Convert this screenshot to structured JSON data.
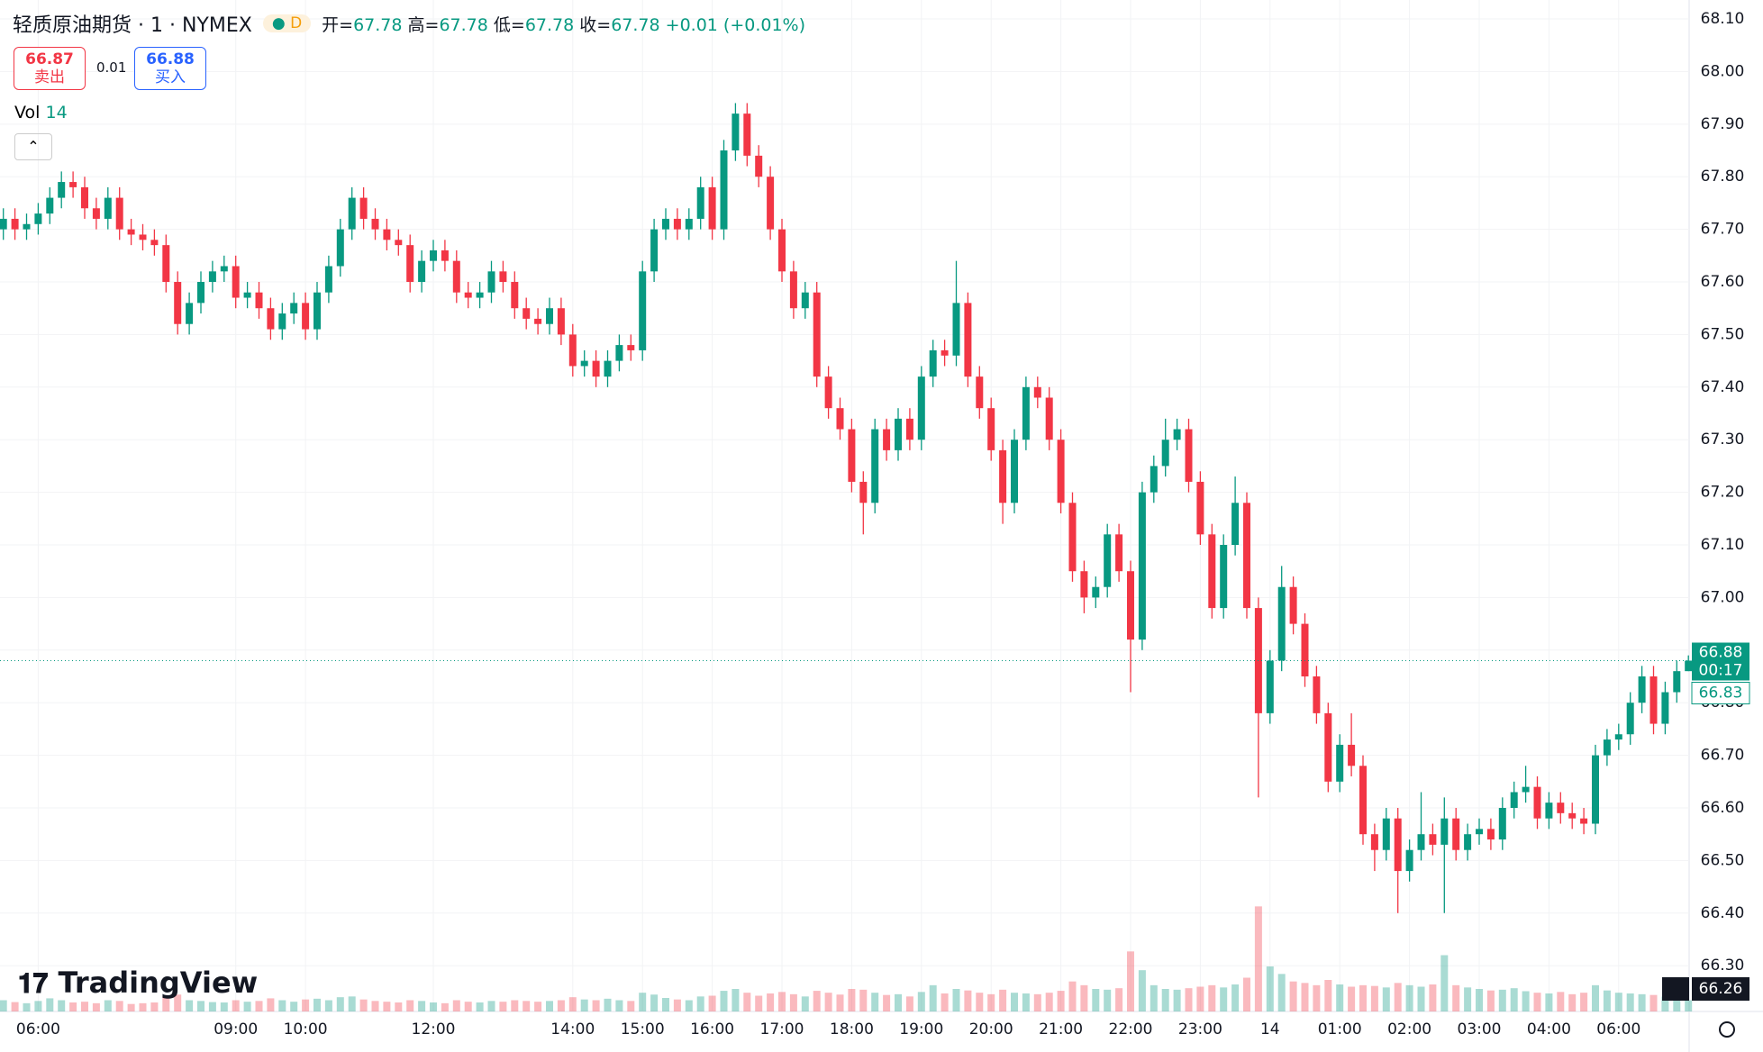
{
  "header": {
    "title": "轻质原油期货 · 1 · NYMEX",
    "interval_badge": "D",
    "ohlc": [
      {
        "k": "开=",
        "v": "67.78"
      },
      {
        "k": "高=",
        "v": "67.78"
      },
      {
        "k": "低=",
        "v": "67.78"
      },
      {
        "k": "收=",
        "v": "67.78"
      }
    ],
    "change": "+0.01 (+0.01%)",
    "bid": {
      "price": "66.87",
      "label": "卖出"
    },
    "spread": "0.01",
    "ask": {
      "price": "66.88",
      "label": "买入"
    },
    "vol": {
      "label": "Vol",
      "value": "14"
    },
    "logo": "TradingView",
    "price_tags": {
      "last": "66.88",
      "countdown": "00:17",
      "second": "66.83",
      "cursor": "66.26"
    }
  },
  "chart_data": {
    "type": "candlestick",
    "up_color": "#089981",
    "down_color": "#f23645",
    "grid": true,
    "ylim": [
      66.213,
      68.136
    ],
    "yticks": [
      {
        "value": 66.3,
        "label": "66.30"
      },
      {
        "value": 66.4,
        "label": "66.40"
      },
      {
        "value": 66.5,
        "label": "66.50"
      },
      {
        "value": 66.6,
        "label": "66.60"
      },
      {
        "value": 66.7,
        "label": "66.70"
      },
      {
        "value": 66.8,
        "label": "66.80"
      },
      {
        "value": 66.9,
        "label": "66.90"
      },
      {
        "value": 67.0,
        "label": "67.00"
      },
      {
        "value": 67.1,
        "label": "67.10"
      },
      {
        "value": 67.2,
        "label": "67.20"
      },
      {
        "value": 67.3,
        "label": "67.30"
      },
      {
        "value": 67.4,
        "label": "67.40"
      },
      {
        "value": 67.5,
        "label": "67.50"
      },
      {
        "value": 67.6,
        "label": "67.60"
      },
      {
        "value": 67.7,
        "label": "67.70"
      },
      {
        "value": 67.8,
        "label": "67.80"
      },
      {
        "value": 67.9,
        "label": "67.90"
      },
      {
        "value": 68.0,
        "label": "68.00"
      },
      {
        "value": 68.1,
        "label": "68.10"
      }
    ],
    "x": [
      null,
      null,
      null,
      "06:00",
      null,
      null,
      null,
      null,
      null,
      null,
      null,
      null,
      null,
      null,
      null,
      null,
      null,
      null,
      null,
      null,
      "09:00",
      null,
      null,
      null,
      null,
      null,
      "10:00",
      null,
      null,
      null,
      null,
      null,
      null,
      null,
      null,
      null,
      null,
      "12:00",
      null,
      null,
      null,
      null,
      null,
      null,
      null,
      null,
      null,
      null,
      null,
      "14:00",
      null,
      null,
      null,
      null,
      null,
      "15:00",
      null,
      null,
      null,
      null,
      null,
      "16:00",
      null,
      null,
      null,
      null,
      null,
      "17:00",
      null,
      null,
      null,
      null,
      null,
      "18:00",
      null,
      null,
      null,
      null,
      null,
      "19:00",
      null,
      null,
      null,
      null,
      null,
      "20:00",
      null,
      null,
      null,
      null,
      null,
      "21:00",
      null,
      null,
      null,
      null,
      null,
      "22:00",
      null,
      null,
      null,
      null,
      null,
      "23:00",
      null,
      null,
      null,
      null,
      null,
      "14",
      null,
      null,
      null,
      null,
      null,
      "01:00",
      null,
      null,
      null,
      null,
      null,
      "02:00",
      null,
      null,
      null,
      null,
      null,
      "03:00",
      null,
      null,
      null,
      null,
      null,
      "04:00",
      null,
      null,
      null,
      null,
      null,
      "06:00",
      null,
      null,
      null,
      null,
      null,
      null
    ],
    "open": [
      67.7,
      67.72,
      67.7,
      67.71,
      67.73,
      67.76,
      67.79,
      67.78,
      67.74,
      67.72,
      67.76,
      67.7,
      67.69,
      67.68,
      67.67,
      67.6,
      67.52,
      67.56,
      67.6,
      67.62,
      67.63,
      67.57,
      67.58,
      67.55,
      67.51,
      67.54,
      67.56,
      67.51,
      67.58,
      67.63,
      67.7,
      67.76,
      67.72,
      67.7,
      67.68,
      67.67,
      67.6,
      67.64,
      67.66,
      67.64,
      67.58,
      67.57,
      67.58,
      67.62,
      67.6,
      67.55,
      67.53,
      67.52,
      67.55,
      67.5,
      67.44,
      67.45,
      67.42,
      67.45,
      67.48,
      67.47,
      67.62,
      67.7,
      67.72,
      67.7,
      67.72,
      67.78,
      67.7,
      67.85,
      67.92,
      67.84,
      67.8,
      67.7,
      67.62,
      67.55,
      67.58,
      67.42,
      67.36,
      67.32,
      67.22,
      67.18,
      67.32,
      67.28,
      67.34,
      67.3,
      67.42,
      67.47,
      67.46,
      67.56,
      67.42,
      67.36,
      67.28,
      67.18,
      67.3,
      67.4,
      67.38,
      67.3,
      67.18,
      67.05,
      67.0,
      67.02,
      67.12,
      67.05,
      66.92,
      67.2,
      67.25,
      67.3,
      67.32,
      67.22,
      67.12,
      66.98,
      67.1,
      67.18,
      66.98,
      66.78,
      66.88,
      67.02,
      66.95,
      66.85,
      66.78,
      66.65,
      66.72,
      66.68,
      66.55,
      66.52,
      66.58,
      66.48,
      66.52,
      66.55,
      66.53,
      66.58,
      66.52,
      66.55,
      66.56,
      66.54,
      66.6,
      66.63,
      66.64,
      66.58,
      66.61,
      66.59,
      66.58,
      66.57,
      66.7,
      66.73,
      66.74,
      66.8,
      66.85,
      66.76,
      66.82,
      66.86
    ],
    "high": [
      67.74,
      67.74,
      67.73,
      67.75,
      67.78,
      67.81,
      67.81,
      67.8,
      67.76,
      67.78,
      67.78,
      67.72,
      67.71,
      67.7,
      67.69,
      67.62,
      67.58,
      67.62,
      67.64,
      67.65,
      67.65,
      67.6,
      67.6,
      67.57,
      67.56,
      67.58,
      67.58,
      67.6,
      67.65,
      67.72,
      67.78,
      67.78,
      67.74,
      67.72,
      67.7,
      67.69,
      67.66,
      67.68,
      67.68,
      67.66,
      67.6,
      67.6,
      67.64,
      67.64,
      67.62,
      67.57,
      67.55,
      67.57,
      67.57,
      67.52,
      67.47,
      67.47,
      67.47,
      67.5,
      67.5,
      67.64,
      67.72,
      67.74,
      67.74,
      67.74,
      67.8,
      67.8,
      67.87,
      67.94,
      67.94,
      67.86,
      67.82,
      67.72,
      67.64,
      67.6,
      67.6,
      67.44,
      67.38,
      67.34,
      67.24,
      67.34,
      67.34,
      67.36,
      67.36,
      67.44,
      67.49,
      67.49,
      67.64,
      67.58,
      67.44,
      67.38,
      67.3,
      67.32,
      67.42,
      67.42,
      67.4,
      67.32,
      67.2,
      67.07,
      67.04,
      67.14,
      67.14,
      67.07,
      67.22,
      67.27,
      67.34,
      67.34,
      67.34,
      67.24,
      67.14,
      67.12,
      67.23,
      67.2,
      67.0,
      66.9,
      67.06,
      67.04,
      66.97,
      66.87,
      66.8,
      66.74,
      66.78,
      66.7,
      66.57,
      66.6,
      66.6,
      66.54,
      66.63,
      66.57,
      66.62,
      66.6,
      66.57,
      66.58,
      66.58,
      66.62,
      66.65,
      66.68,
      66.66,
      66.63,
      66.63,
      66.61,
      66.6,
      66.72,
      66.75,
      66.76,
      66.82,
      66.87,
      66.87,
      66.84,
      66.88,
      66.89
    ],
    "low": [
      67.68,
      67.68,
      67.68,
      67.69,
      67.71,
      67.74,
      67.76,
      67.72,
      67.7,
      67.7,
      67.68,
      67.67,
      67.66,
      67.65,
      67.58,
      67.5,
      67.5,
      67.54,
      67.58,
      67.6,
      67.55,
      67.55,
      67.53,
      67.49,
      67.49,
      67.52,
      67.49,
      67.49,
      67.56,
      67.61,
      67.68,
      67.7,
      67.68,
      67.66,
      67.65,
      67.58,
      67.58,
      67.62,
      67.62,
      67.56,
      67.55,
      67.55,
      67.56,
      67.58,
      67.53,
      67.51,
      67.5,
      67.5,
      67.48,
      67.42,
      67.42,
      67.4,
      67.4,
      67.43,
      67.45,
      67.45,
      67.6,
      67.68,
      67.68,
      67.68,
      67.7,
      67.68,
      67.68,
      67.83,
      67.82,
      67.78,
      67.68,
      67.6,
      67.53,
      67.53,
      67.4,
      67.34,
      67.3,
      67.2,
      67.12,
      67.16,
      67.26,
      67.26,
      67.28,
      67.28,
      67.4,
      67.44,
      67.44,
      67.4,
      67.34,
      67.26,
      67.14,
      67.16,
      67.28,
      67.36,
      67.28,
      67.16,
      67.03,
      66.97,
      66.98,
      67.0,
      67.03,
      66.82,
      66.9,
      67.18,
      67.23,
      67.28,
      67.2,
      67.1,
      66.96,
      66.96,
      67.08,
      66.96,
      66.62,
      66.76,
      66.86,
      66.93,
      66.83,
      66.76,
      66.63,
      66.63,
      66.66,
      66.53,
      66.48,
      66.5,
      66.4,
      66.46,
      66.5,
      66.51,
      66.4,
      66.5,
      66.5,
      66.53,
      66.52,
      66.52,
      66.58,
      66.61,
      66.56,
      66.56,
      66.57,
      66.56,
      66.55,
      66.55,
      66.68,
      66.71,
      66.72,
      66.78,
      66.74,
      66.74,
      66.8,
      66.86
    ],
    "close": [
      67.72,
      67.7,
      67.71,
      67.73,
      67.76,
      67.79,
      67.78,
      67.74,
      67.72,
      67.76,
      67.7,
      67.69,
      67.68,
      67.67,
      67.6,
      67.52,
      67.56,
      67.6,
      67.62,
      67.63,
      67.57,
      67.58,
      67.55,
      67.51,
      67.54,
      67.56,
      67.51,
      67.58,
      67.63,
      67.7,
      67.76,
      67.72,
      67.7,
      67.68,
      67.67,
      67.6,
      67.64,
      67.66,
      67.64,
      67.58,
      67.57,
      67.58,
      67.62,
      67.6,
      67.55,
      67.53,
      67.52,
      67.55,
      67.5,
      67.44,
      67.45,
      67.42,
      67.45,
      67.48,
      67.47,
      67.62,
      67.7,
      67.72,
      67.7,
      67.72,
      67.78,
      67.7,
      67.85,
      67.92,
      67.84,
      67.8,
      67.7,
      67.62,
      67.55,
      67.58,
      67.42,
      67.36,
      67.32,
      67.22,
      67.18,
      67.32,
      67.28,
      67.34,
      67.3,
      67.42,
      67.47,
      67.46,
      67.56,
      67.42,
      67.36,
      67.28,
      67.18,
      67.3,
      67.4,
      67.38,
      67.3,
      67.18,
      67.05,
      67.0,
      67.02,
      67.12,
      67.05,
      66.92,
      67.2,
      67.25,
      67.3,
      67.32,
      67.22,
      67.12,
      66.98,
      67.1,
      67.18,
      66.98,
      66.78,
      66.88,
      67.02,
      66.95,
      66.85,
      66.78,
      66.65,
      66.72,
      66.68,
      66.55,
      66.52,
      66.58,
      66.48,
      66.52,
      66.55,
      66.53,
      66.58,
      66.52,
      66.55,
      66.56,
      66.54,
      66.6,
      66.63,
      66.64,
      66.58,
      66.61,
      66.59,
      66.58,
      66.57,
      66.7,
      66.73,
      66.74,
      66.8,
      66.85,
      66.76,
      66.82,
      66.86,
      66.88
    ],
    "volume": [
      30,
      25,
      22,
      28,
      35,
      30,
      24,
      26,
      22,
      30,
      28,
      20,
      22,
      24,
      40,
      45,
      30,
      28,
      25,
      24,
      30,
      26,
      28,
      35,
      30,
      26,
      32,
      34,
      30,
      38,
      40,
      32,
      28,
      26,
      24,
      30,
      28,
      24,
      22,
      30,
      26,
      24,
      28,
      26,
      30,
      28,
      26,
      28,
      30,
      38,
      32,
      30,
      34,
      30,
      28,
      50,
      45,
      36,
      32,
      30,
      40,
      42,
      55,
      60,
      50,
      42,
      48,
      52,
      46,
      40,
      55,
      50,
      45,
      60,
      58,
      50,
      44,
      46,
      40,
      52,
      70,
      48,
      60,
      56,
      50,
      46,
      58,
      50,
      48,
      46,
      50,
      55,
      80,
      70,
      60,
      58,
      62,
      160,
      110,
      70,
      60,
      58,
      62,
      66,
      70,
      64,
      72,
      90,
      280,
      120,
      100,
      80,
      76,
      70,
      84,
      72,
      66,
      70,
      68,
      64,
      76,
      70,
      66,
      72,
      150,
      70,
      64,
      60,
      56,
      58,
      62,
      54,
      50,
      48,
      52,
      46,
      50,
      70,
      56,
      50,
      48,
      46,
      44,
      40,
      42,
      30
    ],
    "volume_lim": [
      0,
      360
    ]
  }
}
